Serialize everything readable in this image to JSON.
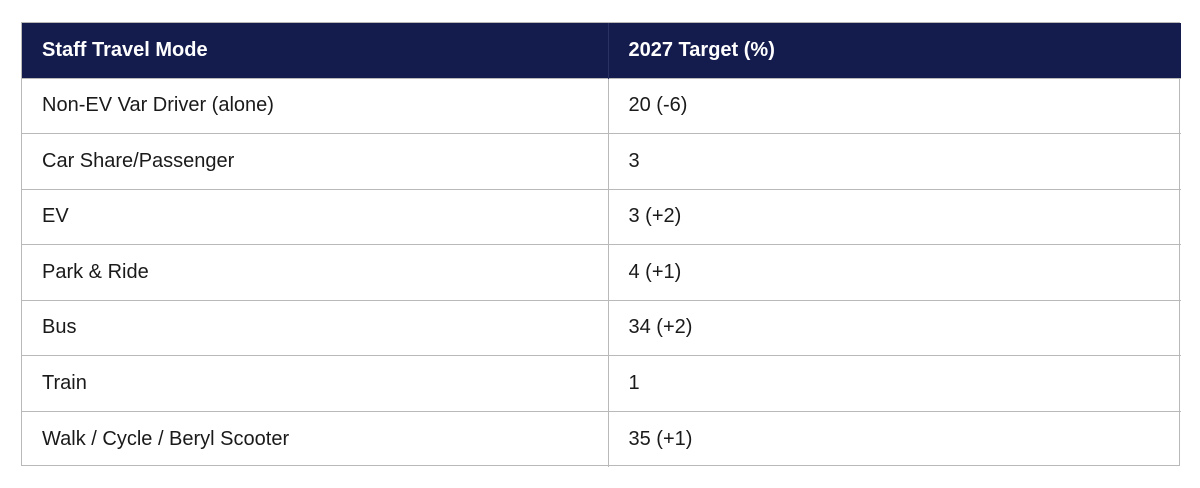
{
  "table": {
    "headers": [
      "Staff Travel Mode",
      "2027 Target (%)"
    ],
    "rows": [
      [
        "Non-EV Var Driver (alone)",
        "20 (-6)"
      ],
      [
        "Car Share/Passenger",
        "3"
      ],
      [
        "EV",
        "3 (+2)"
      ],
      [
        "Park & Ride",
        "4 (+1)"
      ],
      [
        "Bus",
        "34 (+2)"
      ],
      [
        "Train",
        "1"
      ],
      [
        "Walk / Cycle / Beryl Scooter",
        "35 (+1)"
      ]
    ],
    "colors": {
      "header_background": "#141b4d",
      "header_text": "#ffffff",
      "border": "#b9b9b9"
    }
  }
}
